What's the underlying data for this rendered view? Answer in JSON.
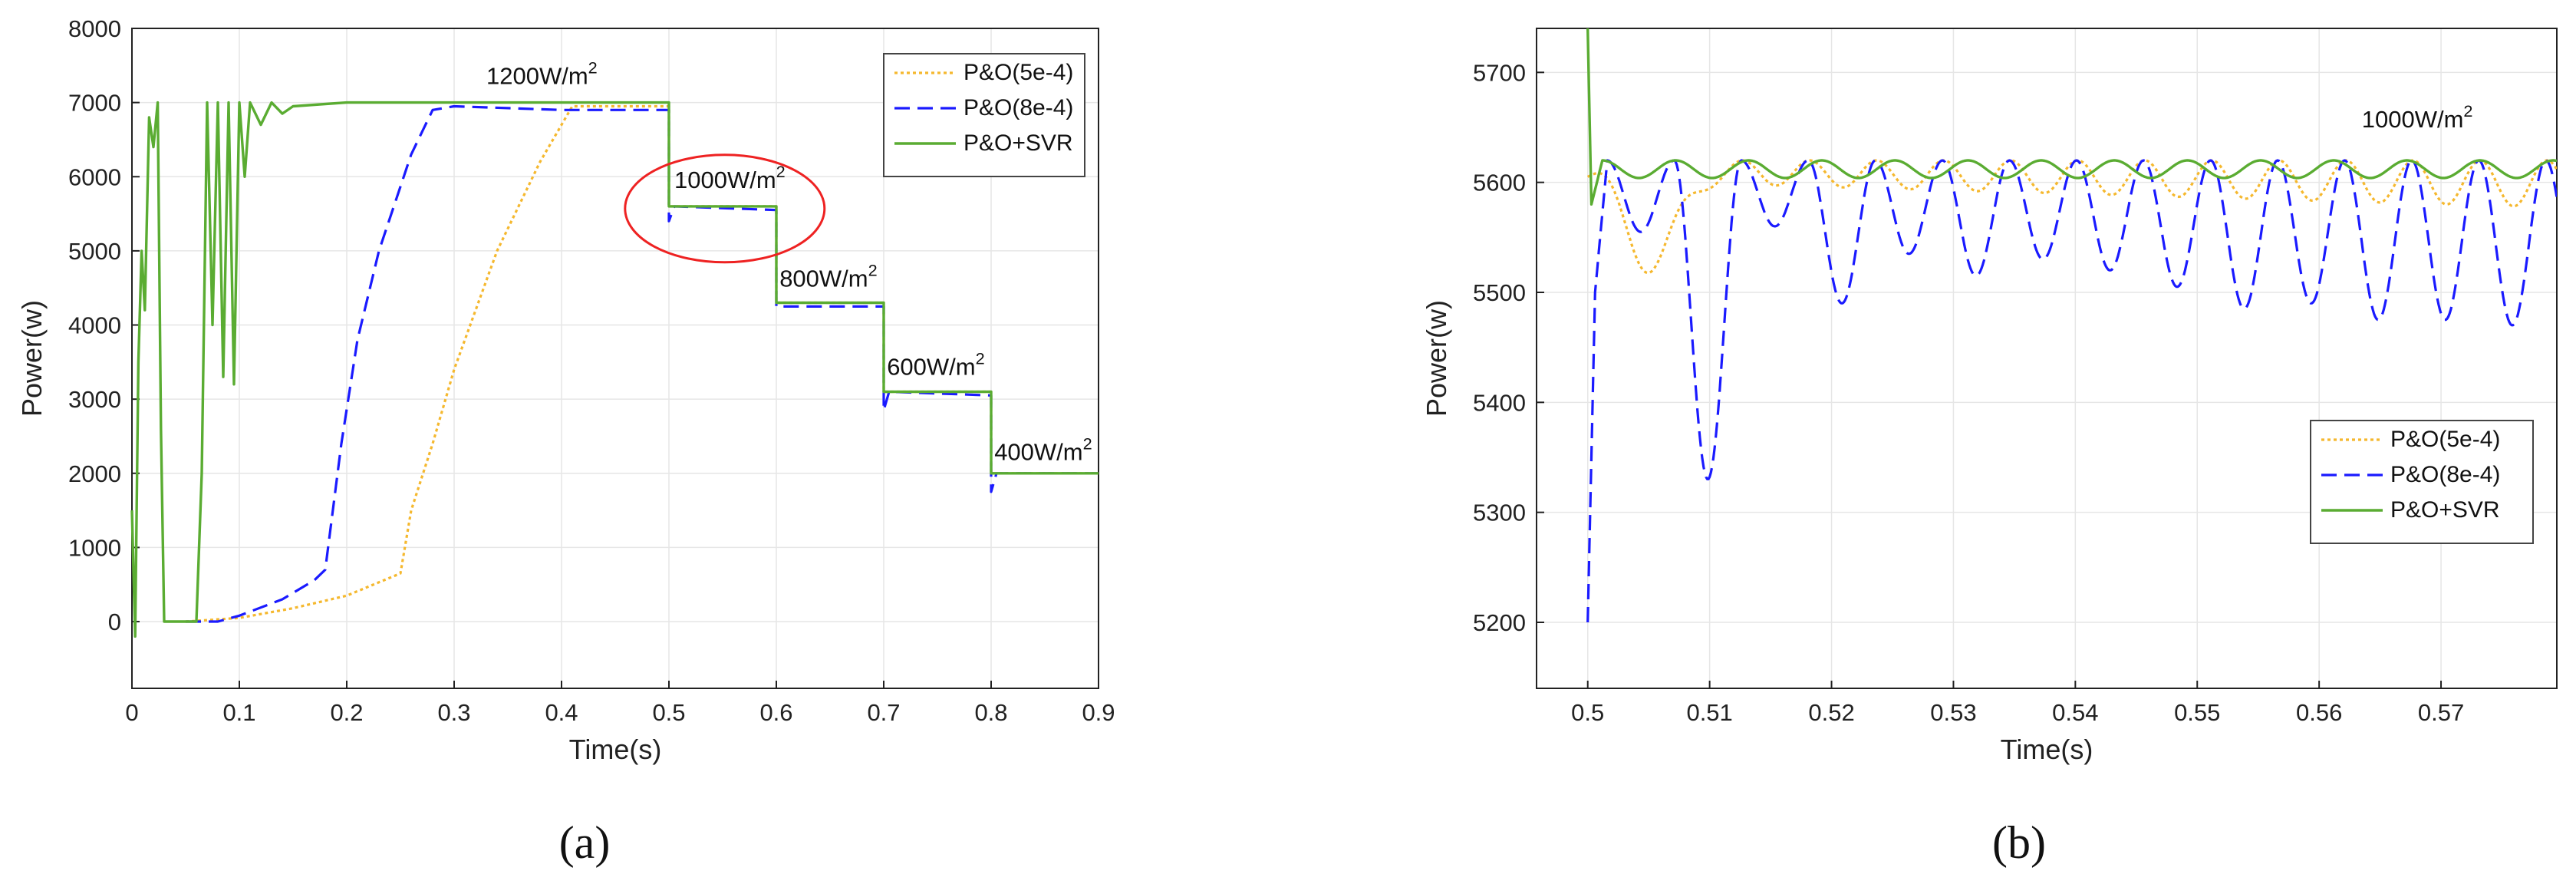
{
  "colors": {
    "po_5e4": "#f5b82e",
    "po_8e4": "#1a1aff",
    "svr": "#5aac32",
    "annotation_circle": "#ee2222",
    "grid": "#e6e6e6",
    "axis": "#222222"
  },
  "chart_data": [
    {
      "type": "line",
      "panel_label": "(a)",
      "xlabel": "Time(s)",
      "ylabel": "Power(w)",
      "xlim": [
        0,
        0.9
      ],
      "ylim": [
        -900,
        8000
      ],
      "xticks": [
        "0",
        "0.1",
        "0.2",
        "0.3",
        "0.4",
        "0.5",
        "0.6",
        "0.7",
        "0.8",
        "0.9"
      ],
      "yticks": [
        "0",
        "1000",
        "2000",
        "3000",
        "4000",
        "5000",
        "6000",
        "7000",
        "8000"
      ],
      "grid": true,
      "legend_position": "top-right",
      "series": [
        {
          "name": "P&O(5e-4)",
          "style": "dotted",
          "points": [
            [
              0.05,
              0
            ],
            [
              0.1,
              50
            ],
            [
              0.15,
              180
            ],
            [
              0.2,
              350
            ],
            [
              0.25,
              650
            ],
            [
              0.26,
              1500
            ],
            [
              0.28,
              2400
            ],
            [
              0.3,
              3400
            ],
            [
              0.34,
              5000
            ],
            [
              0.38,
              6200
            ],
            [
              0.41,
              6950
            ],
            [
              0.44,
              6950
            ],
            [
              0.5,
              6950
            ],
            [
              0.5,
              5600
            ],
            [
              0.6,
              5600
            ],
            [
              0.6,
              4300
            ],
            [
              0.7,
              4300
            ],
            [
              0.7,
              3100
            ],
            [
              0.8,
              3100
            ],
            [
              0.8,
              2000
            ],
            [
              0.9,
              2000
            ]
          ]
        },
        {
          "name": "P&O(8e-4)",
          "style": "dashed",
          "points": [
            [
              0.05,
              0
            ],
            [
              0.08,
              0
            ],
            [
              0.1,
              80
            ],
            [
              0.14,
              300
            ],
            [
              0.17,
              560
            ],
            [
              0.18,
              700
            ],
            [
              0.195,
              2400
            ],
            [
              0.21,
              3800
            ],
            [
              0.23,
              5000
            ],
            [
              0.26,
              6300
            ],
            [
              0.28,
              6900
            ],
            [
              0.3,
              6950
            ],
            [
              0.4,
              6900
            ],
            [
              0.5,
              6900
            ],
            [
              0.5,
              5400
            ],
            [
              0.505,
              5600
            ],
            [
              0.6,
              5550
            ],
            [
              0.6,
              4250
            ],
            [
              0.7,
              4250
            ],
            [
              0.7,
              2850
            ],
            [
              0.705,
              3100
            ],
            [
              0.8,
              3050
            ],
            [
              0.8,
              1750
            ],
            [
              0.805,
              2000
            ],
            [
              0.9,
              2000
            ]
          ]
        },
        {
          "name": "P&O+SVR",
          "style": "solid",
          "points": [
            [
              0,
              1500
            ],
            [
              0.003,
              -200
            ],
            [
              0.006,
              3500
            ],
            [
              0.009,
              5000
            ],
            [
              0.012,
              4200
            ],
            [
              0.016,
              6800
            ],
            [
              0.02,
              6400
            ],
            [
              0.024,
              7000
            ],
            [
              0.027,
              2600
            ],
            [
              0.03,
              0
            ],
            [
              0.06,
              0
            ],
            [
              0.065,
              2000
            ],
            [
              0.07,
              7000
            ],
            [
              0.075,
              4000
            ],
            [
              0.08,
              7000
            ],
            [
              0.085,
              3300
            ],
            [
              0.09,
              7000
            ],
            [
              0.095,
              3200
            ],
            [
              0.1,
              7000
            ],
            [
              0.105,
              6000
            ],
            [
              0.11,
              7000
            ],
            [
              0.12,
              6700
            ],
            [
              0.13,
              7000
            ],
            [
              0.14,
              6850
            ],
            [
              0.15,
              6950
            ],
            [
              0.2,
              7000
            ],
            [
              0.5,
              7000
            ],
            [
              0.5,
              5600
            ],
            [
              0.6,
              5600
            ],
            [
              0.6,
              4300
            ],
            [
              0.7,
              4300
            ],
            [
              0.7,
              3100
            ],
            [
              0.8,
              3100
            ],
            [
              0.8,
              2000
            ],
            [
              0.9,
              2000
            ]
          ]
        }
      ],
      "annotations": [
        {
          "text": "1200W/m",
          "sup": "2",
          "x": 0.33,
          "y": 7250
        },
        {
          "text": "1000W/m",
          "sup": "2",
          "x": 0.505,
          "y": 5850
        },
        {
          "text": "800W/m",
          "sup": "2",
          "x": 0.603,
          "y": 4520
        },
        {
          "text": "600W/m",
          "sup": "2",
          "x": 0.703,
          "y": 3330
        },
        {
          "text": "400W/m",
          "sup": "2",
          "x": 0.803,
          "y": 2180
        }
      ]
    },
    {
      "type": "line",
      "panel_label": "(b)",
      "xlabel": "Time(s)",
      "ylabel": "Power(w)",
      "xlim": [
        0.4958,
        0.5795
      ],
      "ylim": [
        5140,
        5740
      ],
      "xticks": [
        "0.5",
        "0.51",
        "0.52",
        "0.53",
        "0.54",
        "0.55",
        "0.56",
        "0.57"
      ],
      "yticks": [
        "5200",
        "5300",
        "5400",
        "5500",
        "5600",
        "5700"
      ],
      "grid": true,
      "legend_position": "bottom-right",
      "annotation": {
        "text": "1000W/m",
        "sup": "2",
        "x": 0.5635,
        "y": 5650
      },
      "series": [
        {
          "name": "P&O(5e-4)",
          "style": "dotted",
          "model": "po5"
        },
        {
          "name": "P&O(8e-4)",
          "style": "dashed",
          "model": "po8"
        },
        {
          "name": "P&O+SVR",
          "style": "solid",
          "model": "svr"
        }
      ]
    }
  ]
}
